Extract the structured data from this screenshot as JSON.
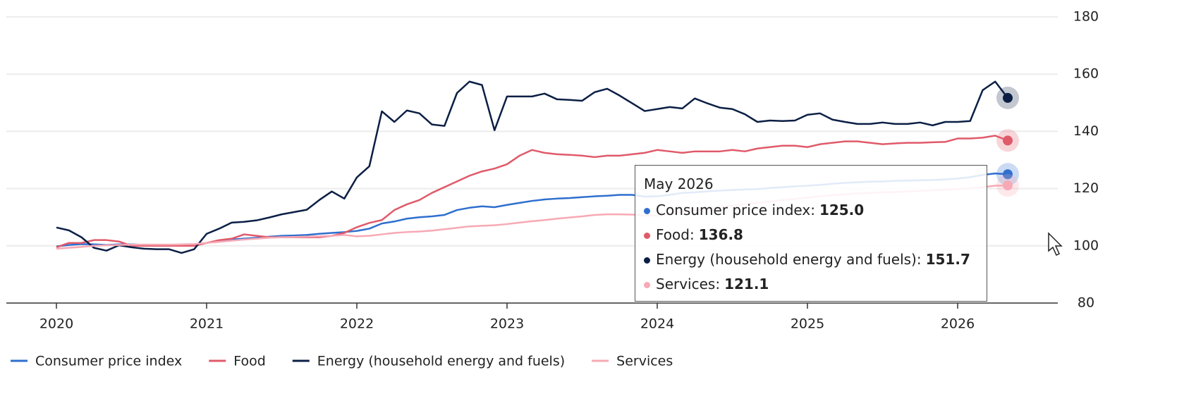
{
  "chart_data": {
    "type": "line",
    "x": [
      "2020-01",
      "2020-02",
      "2020-03",
      "2020-04",
      "2020-05",
      "2020-06",
      "2020-07",
      "2020-08",
      "2020-09",
      "2020-10",
      "2020-11",
      "2020-12",
      "2021-01",
      "2021-02",
      "2021-03",
      "2021-04",
      "2021-05",
      "2021-06",
      "2021-07",
      "2021-08",
      "2021-09",
      "2021-10",
      "2021-11",
      "2021-12",
      "2022-01",
      "2022-02",
      "2022-03",
      "2022-04",
      "2022-05",
      "2022-06",
      "2022-07",
      "2022-08",
      "2022-09",
      "2022-10",
      "2022-11",
      "2022-12",
      "2023-01",
      "2023-02",
      "2023-03",
      "2023-04",
      "2023-05",
      "2023-06",
      "2023-07",
      "2023-08",
      "2023-09",
      "2023-10",
      "2023-11",
      "2023-12",
      "2024-01",
      "2024-02",
      "2024-03",
      "2024-04",
      "2024-05",
      "2024-06",
      "2024-07",
      "2024-08",
      "2024-09",
      "2024-10",
      "2024-11",
      "2024-12",
      "2025-01",
      "2025-02",
      "2025-03",
      "2025-04",
      "2025-05",
      "2025-06",
      "2025-07",
      "2025-08",
      "2025-09",
      "2025-10",
      "2025-11",
      "2025-12",
      "2026-01",
      "2026-02",
      "2026-03",
      "2026-04",
      "2026-05"
    ],
    "series": [
      {
        "name": "Consumer price index",
        "color": "#2f6fce",
        "values": [
          99.8,
          100.3,
          100.6,
          100.5,
          100.3,
          100.5,
          100.5,
          100.3,
          100.3,
          100.2,
          100.2,
          100.5,
          101,
          101.8,
          102.2,
          102.5,
          102.8,
          103.2,
          103.5,
          103.6,
          103.8,
          104.2,
          104.5,
          104.8,
          105.2,
          106,
          107.8,
          108.5,
          109.5,
          110,
          110.3,
          110.8,
          112.5,
          113.3,
          113.8,
          113.5,
          114.3,
          115,
          115.7,
          116.2,
          116.5,
          116.7,
          117,
          117.3,
          117.5,
          117.8,
          117.8,
          117.2,
          117.3,
          117.8,
          118.5,
          118.7,
          119,
          119.3,
          119.5,
          119.7,
          119.8,
          120.2,
          120.5,
          120.8,
          121,
          121.3,
          121.7,
          122,
          122.2,
          122.4,
          122.5,
          122.7,
          122.8,
          122.9,
          123,
          123.2,
          123.5,
          124,
          124.8,
          125.3,
          125
        ]
      },
      {
        "name": "Food",
        "color": "#e05a6a",
        "values": [
          99.5,
          101,
          101,
          102,
          102,
          101.5,
          100,
          100,
          100,
          100,
          100,
          100,
          101,
          102,
          102.5,
          104,
          103.5,
          103,
          103,
          103,
          103,
          103,
          103.5,
          104.5,
          106.5,
          108,
          109,
          112.5,
          114.5,
          116,
          118.5,
          120.5,
          122.5,
          124.5,
          126,
          127,
          128.5,
          131.5,
          133.5,
          132.5,
          132,
          131.8,
          131.5,
          131,
          131.5,
          131.5,
          132,
          132.5,
          133.5,
          133,
          132.5,
          133,
          133,
          133,
          133.5,
          133,
          134,
          134.5,
          135,
          135,
          134.5,
          135.5,
          136,
          136.5,
          136.5,
          136,
          135.5,
          135.8,
          136,
          136,
          136.2,
          136.3,
          137.5,
          137.5,
          137.8,
          138.5,
          136.8
        ]
      },
      {
        "name": "Energy (household energy and fuels)",
        "color": "#0b1f45",
        "values": [
          106.4,
          105.4,
          103,
          99.3,
          98.3,
          100.2,
          99.5,
          99,
          98.8,
          98.8,
          97.5,
          98.8,
          104.2,
          106,
          108.1,
          108.4,
          108.9,
          109.9,
          111,
          111.8,
          112.6,
          116,
          119,
          116.5,
          123.9,
          127.8,
          147,
          143.3,
          147.3,
          146.3,
          142.4,
          141.9,
          153.4,
          157.4,
          156.2,
          140.4,
          152.2,
          152.2,
          152.2,
          153.2,
          151.2,
          151,
          150.7,
          153.7,
          154.9,
          152.5,
          149.8,
          147.1,
          147.8,
          148.5,
          148,
          151.5,
          149.8,
          148.3,
          147.8,
          146,
          143.3,
          143.8,
          143.6,
          143.8,
          145.8,
          146.3,
          144.1,
          143.3,
          142.6,
          142.6,
          143.1,
          142.6,
          142.6,
          143.1,
          142.1,
          143.3,
          143.3,
          143.6,
          154.4,
          157.4,
          151.7
        ]
      },
      {
        "name": "Services",
        "color": "#f7a9b5",
        "values": [
          99,
          99.3,
          99.6,
          100,
          100.2,
          100.3,
          100.4,
          100.4,
          100.4,
          100.4,
          100.5,
          100.6,
          101,
          101.4,
          101.8,
          102.2,
          102.5,
          102.8,
          103,
          103.1,
          103.2,
          103.3,
          103.5,
          103.8,
          103.3,
          103.5,
          104,
          104.5,
          104.8,
          105,
          105.3,
          105.8,
          106.3,
          106.8,
          107,
          107.2,
          107.6,
          108.1,
          108.6,
          109,
          109.5,
          109.9,
          110.3,
          110.8,
          111,
          111,
          110.9,
          110.6,
          110.5,
          111.2,
          111.9,
          112.4,
          113,
          113.5,
          114,
          114.5,
          115,
          115.5,
          116,
          116.4,
          116.8,
          117.3,
          117.7,
          118,
          118.3,
          118.5,
          118.7,
          118.8,
          119,
          119.2,
          119.4,
          119.6,
          119.8,
          120.1,
          120.5,
          121,
          121.1
        ]
      }
    ],
    "xlim": [
      "2019-09",
      "2026-09"
    ],
    "xticks": [
      {
        "value": "2020-01",
        "label": "2020"
      },
      {
        "value": "2021-01",
        "label": "2021"
      },
      {
        "value": "2022-01",
        "label": "2022"
      },
      {
        "value": "2023-01",
        "label": "2023"
      },
      {
        "value": "2024-01",
        "label": "2024"
      },
      {
        "value": "2025-01",
        "label": "2025"
      },
      {
        "value": "2026-01",
        "label": "2026"
      }
    ],
    "ylim": [
      80,
      180
    ],
    "yticks": [
      80,
      100,
      120,
      140,
      160,
      180
    ],
    "grid": true,
    "legend": "bottom",
    "tooltip": {
      "title": "May 2026",
      "items": [
        {
          "label": "Consumer price index:",
          "value_label": "125.0"
        },
        {
          "label": "Food:",
          "value_label": "136.8"
        },
        {
          "label": "Energy (household energy and fuels):",
          "value_label": "151.7"
        },
        {
          "label": "Services:",
          "value_label": "121.1"
        }
      ]
    }
  }
}
